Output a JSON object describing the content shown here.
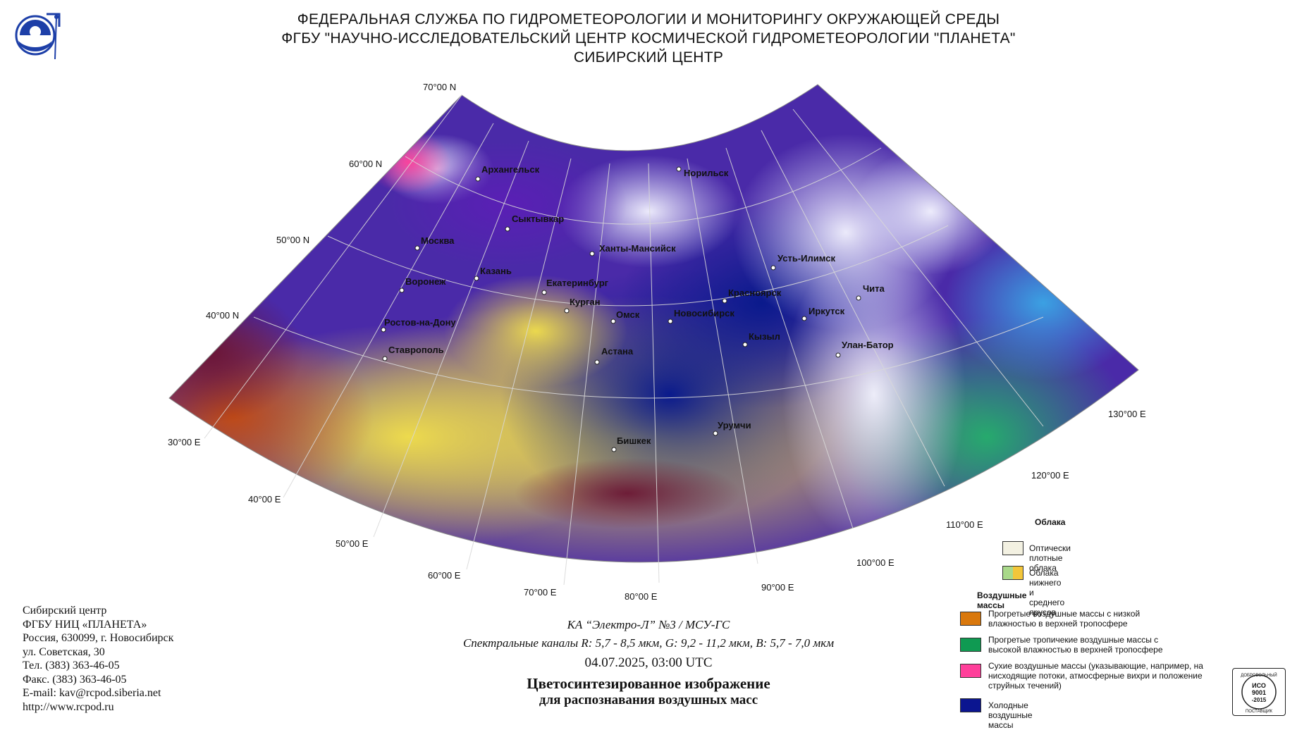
{
  "header": {
    "line1": "ФЕДЕРАЛЬНАЯ СЛУЖБА ПО ГИДРОМЕТЕОРОЛОГИИ И МОНИТОРИНГУ ОКРУЖАЮЩЕЙ СРЕДЫ",
    "line2": "ФГБУ \"НАУЧНО-ИССЛЕДОВАТЕЛЬСКИЙ ЦЕНТР КОСМИЧЕСКОЙ ГИДРОМЕТЕОРОЛОГИИ \"ПЛАНЕТА\"",
    "line3": "СИБИРСКИЙ ЦЕНТР"
  },
  "map": {
    "lat_labels": [
      "70°00 N",
      "60°00 N",
      "50°00 N",
      "40°00 N"
    ],
    "lon_labels": [
      "30°00 E",
      "40°00 E",
      "50°00 E",
      "60°00 E",
      "70°00 E",
      "80°00 E",
      "90°00 E",
      "100°00 E",
      "110°00 E",
      "120°00 E",
      "130°00 E"
    ],
    "cities": [
      "Архангельск",
      "Норильск",
      "Сыктывкар",
      "Москва",
      "Ханты-Мансийск",
      "Усть-Илимск",
      "Казань",
      "Воронеж",
      "Екатеринбург",
      "Красноярск",
      "Чита",
      "Курган",
      "Омск",
      "Новосибирск",
      "Иркутск",
      "Ростов-на-Дону",
      "Кызыл",
      "Улан-Батор",
      "Ставрополь",
      "Астана",
      "Урумчи",
      "Бишкек"
    ]
  },
  "contact": {
    "line1": "Сибирский центр",
    "line2": "ФГБУ НИЦ «ПЛАНЕТА»",
    "line3": "Россия, 630099, г. Новосибирск",
    "line4": "ул. Советская, 30",
    "line5": "Тел. (383) 363-46-05",
    "line6": "Факс. (383) 363-46-05",
    "line7": "E-mail: kav@rcpod.siberia.net",
    "line8": "http://www.rcpod.ru"
  },
  "caption": {
    "satellite": "КА “Электро-Л” №3 / МСУ-ГС",
    "channels": "Спектральные каналы R: 5,7 - 8,5 мкм, G: 9,2 - 11,2 мкм, B: 5,7 - 7,0 мкм",
    "datetime": "04.07.2025, 03:00 UTC",
    "title1": "Цветосинтезированное изображение",
    "title2": "для распознавания воздушных масс"
  },
  "legend": {
    "clouds_header": "Облака",
    "dense_clouds": "Оптически плотные облака",
    "low_mid_clouds": "Облака нижнего и среднего ярусов",
    "air_header": "Воздушные массы",
    "warm_low": "Прогретые воздушные массы с низкой влажностью в верхней тропосфере",
    "warm_tropical": "Прогретые тропичекие воздушные массы с высокой влажностью в верхней тропосфере",
    "dry": "Сухие воздушные массы (указывающие, например, на нисходящие потоки, атмосферные вихри и положение струйных течений)",
    "cold": "Холодные воздушные массы",
    "colors": {
      "dense": "#f3f1e2",
      "low_mid_a": "#a9d98a",
      "low_mid_b": "#f3c63a",
      "warm_low": "#d9780c",
      "warm_tropical": "#0f9a52",
      "dry": "#ff3f9a",
      "cold": "#0b1590"
    }
  },
  "cert": {
    "line1": "ДОБРОВОЛЬНЫЙ",
    "line2": "ИСО",
    "line3": "9001",
    "line4": "-2015",
    "line5": "ПОСТАВЩИК"
  }
}
